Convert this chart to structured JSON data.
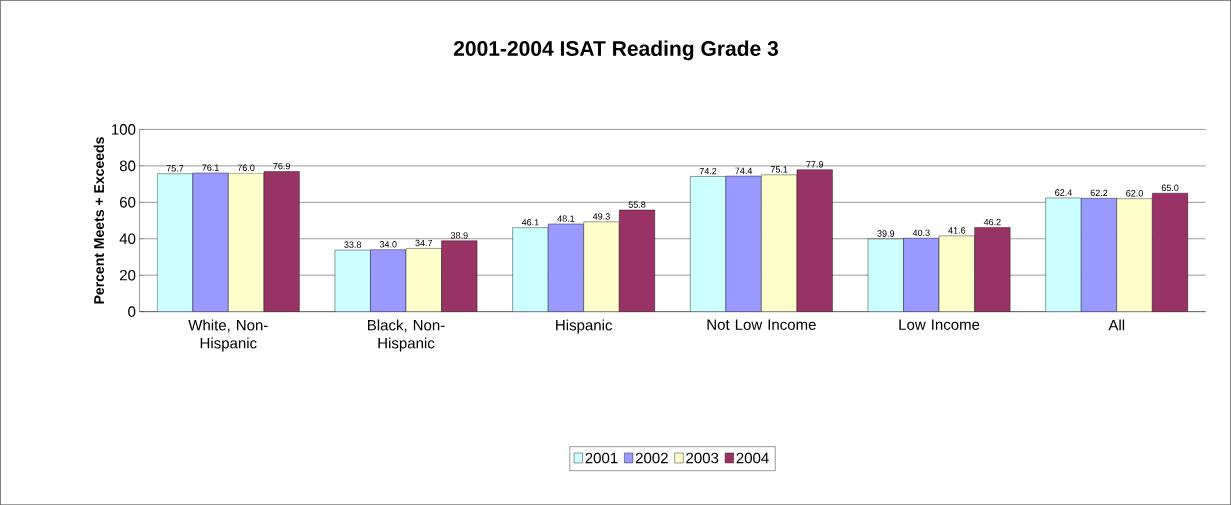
{
  "chart_data": {
    "type": "bar",
    "title": "2001-2004 ISAT Reading Grade 3",
    "ylabel": "Percent Meets + Exceeds",
    "categories": [
      "White, Non-Hispanic",
      "Black, Non-Hispanic",
      "Hispanic",
      "Not Low Income",
      "Low Income",
      "All"
    ],
    "series": [
      {
        "name": "2001",
        "color": "#ccffff",
        "values": [
          75.7,
          33.8,
          46.1,
          74.2,
          39.9,
          62.4
        ],
        "value_labels": [
          "75.7",
          "33.8",
          "46.1",
          "74.2",
          "39.9",
          "62.4"
        ]
      },
      {
        "name": "2002",
        "color": "#9999ff",
        "values": [
          76.1,
          34.0,
          48.1,
          74.4,
          40.3,
          62.2
        ],
        "value_labels": [
          "76.1",
          "34.0",
          "48.1",
          "74.4",
          "40.3",
          "62.2"
        ]
      },
      {
        "name": "2003",
        "color": "#ffffcc",
        "values": [
          76.0,
          34.7,
          49.3,
          75.1,
          41.6,
          62.0
        ],
        "value_labels": [
          "76.0",
          "34.7",
          "49.3",
          "75.1",
          "41.6",
          "62.0"
        ]
      },
      {
        "name": "2004",
        "color": "#993366",
        "values": [
          76.9,
          38.9,
          55.8,
          77.9,
          46.2,
          65.0
        ],
        "value_labels": [
          "76.9",
          "38.9",
          "55.8",
          "77.9",
          "46.2",
          "65.0"
        ]
      }
    ],
    "ylim": [
      0,
      100
    ],
    "yticks": [
      0,
      20,
      40,
      60,
      80,
      100
    ],
    "grid": "y",
    "legend": "bottom"
  }
}
